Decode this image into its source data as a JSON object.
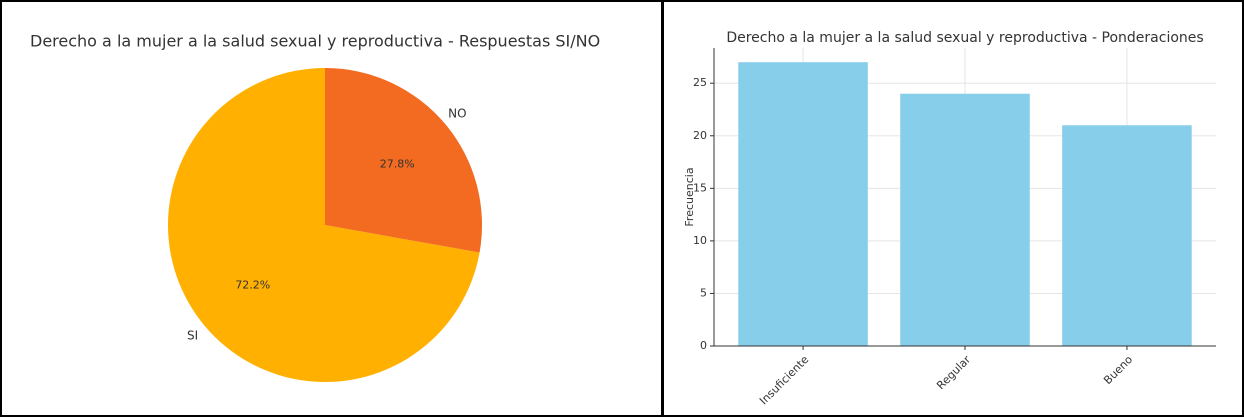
{
  "chart_data": [
    {
      "type": "pie",
      "title": "Derecho a la mujer a la salud sexual y reproductiva - Respuestas SI/NO",
      "categories": [
        "SI",
        "NO"
      ],
      "values": [
        72.2,
        27.8
      ],
      "value_labels": [
        "72.2%",
        "27.8%"
      ],
      "colors": [
        "#ffb000",
        "#f26b21"
      ]
    },
    {
      "type": "bar",
      "title": "Derecho a la mujer a la salud sexual y reproductiva - Ponderaciones",
      "y_label": "Frecuencia",
      "categories": [
        "Insuficiente",
        "Regular",
        "Bueno"
      ],
      "values": [
        27,
        24,
        21
      ],
      "color": "#87ceeb",
      "ylim": [
        0,
        28.35
      ],
      "yticks": [
        0,
        5,
        10,
        15,
        20,
        25
      ],
      "grid": true
    }
  ]
}
